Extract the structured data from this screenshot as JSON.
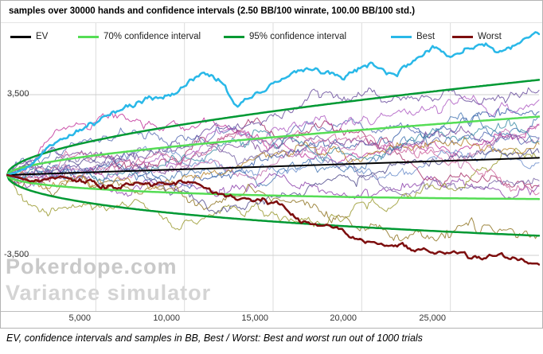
{
  "panel": {
    "caption": "EV, confidence intervals and samples in BB, Best / Worst: Best and worst run out of 1000 trials",
    "watermark_line1": "Pokerdope.com",
    "watermark_line2": "Variance simulator"
  },
  "chart_data": {
    "type": "line",
    "title": "samples over 30000 hands and confidence intervals (2.50 BB/100 winrate, 100.00 BB/100 std.)",
    "params": {
      "hands": 30000,
      "winrate_bb_per_100": 2.5,
      "std_bb_per_100": 100,
      "trials": 1000,
      "num_sample_lines": 18
    },
    "x_ticks": [
      {
        "value": 5000,
        "label": "5,000"
      },
      {
        "value": 10000,
        "label": "10,000"
      },
      {
        "value": 15000,
        "label": "15,000"
      },
      {
        "value": 20000,
        "label": "20,000"
      },
      {
        "value": 25000,
        "label": "25,000"
      }
    ],
    "y_ticks": [
      {
        "value": 3500,
        "label": "3,500"
      },
      {
        "value": -3500,
        "label": "-3,500"
      }
    ],
    "ylim": [
      -5900,
      6600
    ],
    "grid": true,
    "legend_position": "top",
    "legend": [
      {
        "label": "EV",
        "color": "#000000"
      },
      {
        "label": "70% confidence interval",
        "color": "#55dd55"
      },
      {
        "label": "95% confidence interval",
        "color": "#009933"
      },
      {
        "label": "Best",
        "color": "#29b8e8"
      },
      {
        "label": "Worst",
        "color": "#7d0e0e"
      }
    ],
    "series": {
      "ev": {
        "start": 0,
        "end": 750
      },
      "ci70": {
        "z": 1.0364,
        "halfwidth_at_end": 1795
      },
      "ci95": {
        "z": 1.96,
        "halfwidth_at_end": 3395
      },
      "best": {
        "final": 6250,
        "control_points": [
          [
            0,
            0
          ],
          [
            1000,
            300
          ],
          [
            2500,
            1100
          ],
          [
            4000,
            1900
          ],
          [
            5000,
            2250
          ],
          [
            6500,
            2900
          ],
          [
            8000,
            3300
          ],
          [
            9500,
            3700
          ],
          [
            11000,
            4250
          ],
          [
            12000,
            4000
          ],
          [
            13000,
            2950
          ],
          [
            14000,
            3500
          ],
          [
            15500,
            4200
          ],
          [
            17500,
            4650
          ],
          [
            19000,
            4100
          ],
          [
            20500,
            4900
          ],
          [
            22000,
            4350
          ],
          [
            24000,
            5450
          ],
          [
            25000,
            5100
          ],
          [
            26500,
            5650
          ],
          [
            27500,
            5300
          ],
          [
            29000,
            6000
          ],
          [
            30000,
            6250
          ]
        ]
      },
      "worst": {
        "final": -3950,
        "control_points": [
          [
            0,
            0
          ],
          [
            1500,
            -250
          ],
          [
            3000,
            -100
          ],
          [
            5000,
            -250
          ],
          [
            6500,
            -500
          ],
          [
            8000,
            -350
          ],
          [
            10000,
            -250
          ],
          [
            11500,
            -600
          ],
          [
            13000,
            -1050
          ],
          [
            14500,
            -1150
          ],
          [
            15500,
            -1300
          ],
          [
            16500,
            -2000
          ],
          [
            17600,
            -2300
          ],
          [
            18500,
            -2250
          ],
          [
            19800,
            -2800
          ],
          [
            21200,
            -3000
          ],
          [
            22500,
            -3150
          ],
          [
            24000,
            -3450
          ],
          [
            25200,
            -3250
          ],
          [
            26600,
            -3600
          ],
          [
            27900,
            -3350
          ],
          [
            29000,
            -3800
          ],
          [
            30000,
            -3950
          ]
        ]
      },
      "sample_colors": [
        "#c2359b",
        "#8e44ad",
        "#5b6fb5",
        "#b05fc4",
        "#3a5fa8",
        "#917524",
        "#6d8fcc",
        "#a8336b",
        "#7b68a8",
        "#4a7ab5",
        "#9a9a30",
        "#c46fae",
        "#55508f",
        "#b5832a",
        "#7d4e9e",
        "#3f8fa8",
        "#d06aa0",
        "#6a4d9e"
      ]
    }
  }
}
